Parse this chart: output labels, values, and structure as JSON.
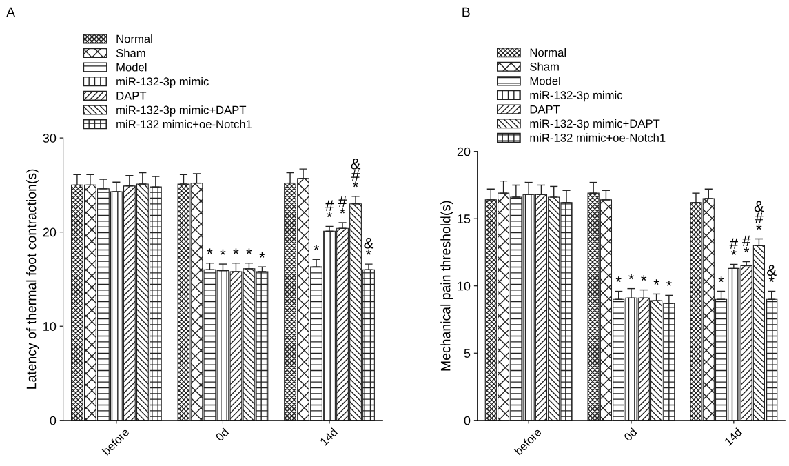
{
  "chart_data": [
    {
      "type": "bar",
      "title": "A",
      "ylabel": "Latency of thermal foot contraction(s)",
      "categories": [
        "before",
        "0d",
        "14d"
      ],
      "ylim": [
        0,
        30
      ],
      "yticks": [
        0,
        10,
        20,
        30
      ],
      "grid": false,
      "legend": "top",
      "series": [
        {
          "name": "Normal",
          "color": "#222222",
          "values": [
            25.0,
            25.1,
            25.2
          ],
          "errors": [
            1.1,
            1.0,
            1.1
          ]
        },
        {
          "name": "Sham",
          "color": "#222222",
          "values": [
            25.0,
            25.2,
            25.7
          ],
          "errors": [
            1.1,
            1.0,
            1.0
          ]
        },
        {
          "name": "Model",
          "color": "#222222",
          "values": [
            24.6,
            16.0,
            16.3
          ],
          "errors": [
            1.0,
            0.7,
            0.8
          ],
          "value_labels": [
            null,
            "*",
            "*"
          ]
        },
        {
          "name": "miR-132-3p mimic",
          "color": "#222222",
          "values": [
            24.3,
            15.9,
            20.1
          ],
          "errors": [
            1.0,
            0.7,
            0.5
          ],
          "value_labels": [
            null,
            "*",
            "#\n*"
          ]
        },
        {
          "name": "DAPT",
          "color": "#222222",
          "values": [
            24.9,
            15.8,
            20.4
          ],
          "errors": [
            1.1,
            0.9,
            0.6
          ],
          "value_labels": [
            null,
            "*",
            "#\n*"
          ]
        },
        {
          "name": "miR-132-3p mimic+DAPT",
          "color": "#222222",
          "values": [
            25.1,
            16.1,
            23.0
          ],
          "errors": [
            1.2,
            0.6,
            0.8
          ],
          "value_labels": [
            null,
            "*",
            "&\n#\n*"
          ]
        },
        {
          "name": "miR-132 mimic+oe-Notch1",
          "color": "#222222",
          "values": [
            24.8,
            15.8,
            16.0
          ],
          "errors": [
            1.1,
            0.5,
            0.6
          ],
          "value_labels": [
            null,
            "*",
            "&\n*"
          ]
        }
      ]
    },
    {
      "type": "bar",
      "title": "B",
      "ylabel": "Mechanical pain threshold(s)",
      "categories": [
        "before",
        "0d",
        "14d"
      ],
      "ylim": [
        0,
        20
      ],
      "yticks": [
        0,
        5,
        10,
        15,
        20
      ],
      "grid": false,
      "legend": "top",
      "series": [
        {
          "name": "Normal",
          "color": "#222222",
          "values": [
            16.4,
            16.9,
            16.2
          ],
          "errors": [
            0.8,
            0.8,
            0.7
          ]
        },
        {
          "name": "Sham",
          "color": "#222222",
          "values": [
            16.9,
            16.4,
            16.5
          ],
          "errors": [
            0.9,
            0.7,
            0.7
          ]
        },
        {
          "name": "Model",
          "color": "#222222",
          "values": [
            16.6,
            9.0,
            9.0
          ],
          "errors": [
            0.9,
            0.6,
            0.6
          ],
          "value_labels": [
            null,
            "*",
            "*"
          ]
        },
        {
          "name": "miR-132-3p mimic",
          "color": "#222222",
          "values": [
            16.8,
            9.1,
            11.3
          ],
          "errors": [
            0.9,
            0.7,
            0.3
          ],
          "value_labels": [
            null,
            "*",
            "#\n*"
          ]
        },
        {
          "name": "DAPT",
          "color": "#222222",
          "values": [
            16.8,
            9.1,
            11.5
          ],
          "errors": [
            0.7,
            0.6,
            0.3
          ],
          "value_labels": [
            null,
            "*",
            "#\n*"
          ]
        },
        {
          "name": "miR-132-3p mimic+DAPT",
          "color": "#222222",
          "values": [
            16.6,
            8.9,
            13.0
          ],
          "errors": [
            0.8,
            0.5,
            0.5
          ],
          "value_labels": [
            null,
            "*",
            "&\n#\n*"
          ]
        },
        {
          "name": "miR-132 mimic+oe-Notch1",
          "color": "#222222",
          "values": [
            16.2,
            8.7,
            9.0
          ],
          "errors": [
            0.9,
            0.6,
            0.6
          ],
          "value_labels": [
            null,
            "*",
            "&\n*"
          ]
        }
      ]
    }
  ]
}
